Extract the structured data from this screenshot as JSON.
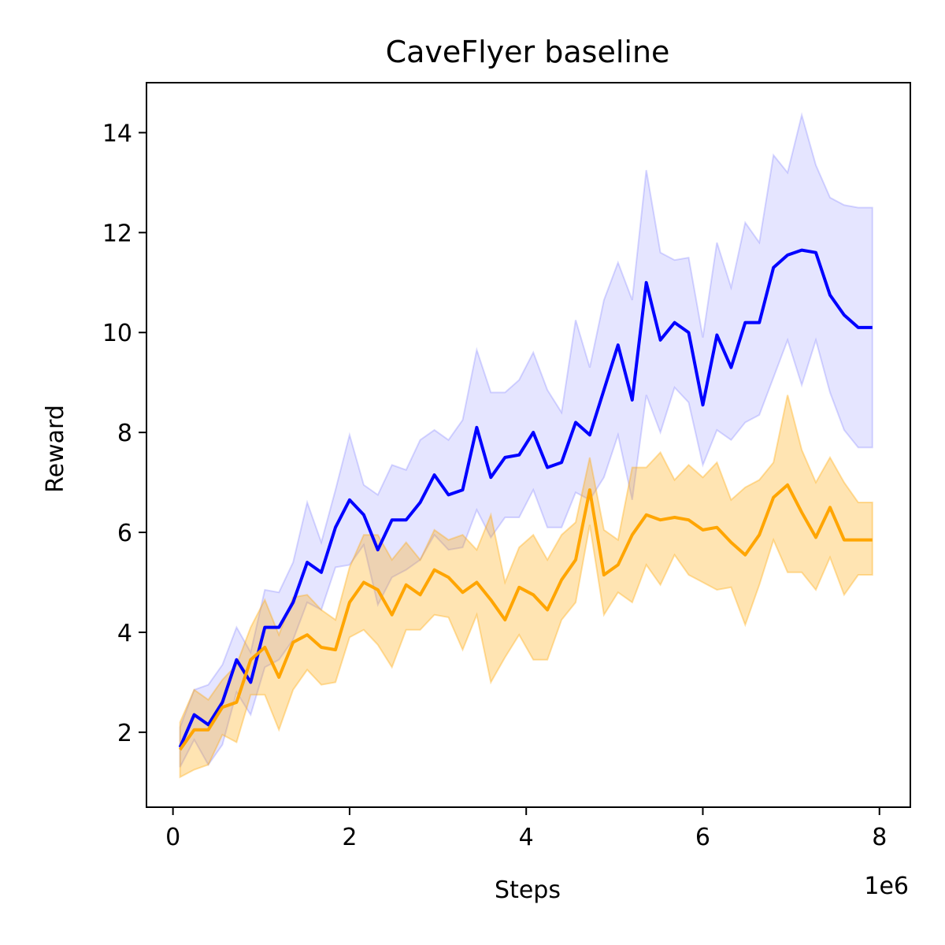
{
  "chart_data": {
    "type": "line",
    "title": "CaveFlyer baseline",
    "xlabel": "Steps",
    "ylabel": "Reward",
    "x_offset_label": "1e6",
    "xlim": [
      -0.3,
      8.35
    ],
    "ylim": [
      0.5,
      15.0
    ],
    "x_ticks": [
      0,
      2,
      4,
      6,
      8
    ],
    "x_tick_labels": [
      "0",
      "2",
      "4",
      "6",
      "8"
    ],
    "y_ticks": [
      2,
      4,
      6,
      8,
      10,
      12,
      14
    ],
    "y_tick_labels": [
      "2",
      "4",
      "6",
      "8",
      "10",
      "12",
      "14"
    ],
    "grid": false,
    "legend": "none",
    "x": [
      0.08,
      0.24,
      0.4,
      0.56,
      0.72,
      0.88,
      1.04,
      1.2,
      1.36,
      1.52,
      1.68,
      1.84,
      2.0,
      2.16,
      2.32,
      2.48,
      2.64,
      2.8,
      2.96,
      3.12,
      3.28,
      3.44,
      3.6,
      3.76,
      3.92,
      4.08,
      4.24,
      4.4,
      4.56,
      4.72,
      4.88,
      5.04,
      5.2,
      5.36,
      5.52,
      5.68,
      5.84,
      6.0,
      6.16,
      6.32,
      6.48,
      6.64,
      6.8,
      6.96,
      7.12,
      7.28,
      7.44,
      7.6,
      7.76,
      7.92
    ],
    "series": [
      {
        "color": "#0000ff",
        "band_color": "#0000ff",
        "values": [
          1.7,
          2.35,
          2.15,
          2.6,
          3.45,
          3.0,
          4.1,
          4.1,
          4.6,
          5.4,
          5.2,
          6.1,
          6.65,
          6.35,
          5.65,
          6.25,
          6.25,
          6.6,
          7.15,
          6.75,
          6.85,
          8.1,
          7.1,
          7.5,
          7.55,
          8.0,
          7.3,
          7.4,
          8.2,
          7.95,
          8.85,
          9.75,
          8.65,
          11.0,
          9.85,
          10.2,
          10.0,
          8.55,
          9.95,
          9.3,
          10.2,
          10.2,
          11.3,
          11.55,
          11.65,
          11.6,
          10.75,
          10.35,
          10.1,
          10.1
        ],
        "lower": [
          1.3,
          1.85,
          1.35,
          1.75,
          2.8,
          2.35,
          3.3,
          3.45,
          3.85,
          4.6,
          4.45,
          5.3,
          5.35,
          5.75,
          4.55,
          5.1,
          5.25,
          5.45,
          5.95,
          5.65,
          5.7,
          6.45,
          5.9,
          6.3,
          6.3,
          6.85,
          6.1,
          6.1,
          6.8,
          6.65,
          7.1,
          7.95,
          6.65,
          8.75,
          8.0,
          8.9,
          8.6,
          7.35,
          8.05,
          7.85,
          8.2,
          8.35,
          9.1,
          9.85,
          8.95,
          9.85,
          8.8,
          8.05,
          7.7,
          7.7
        ],
        "upper": [
          2.1,
          2.85,
          2.95,
          3.35,
          4.1,
          3.6,
          4.85,
          4.8,
          5.4,
          6.6,
          5.8,
          6.85,
          7.95,
          6.95,
          6.75,
          7.35,
          7.25,
          7.85,
          8.05,
          7.85,
          8.25,
          9.65,
          8.8,
          8.8,
          9.05,
          9.6,
          8.85,
          8.4,
          10.25,
          9.3,
          10.65,
          11.4,
          10.65,
          13.25,
          11.6,
          11.45,
          11.5,
          9.9,
          11.8,
          10.9,
          12.2,
          11.8,
          13.55,
          13.2,
          14.35,
          13.35,
          12.7,
          12.55,
          12.5,
          12.5
        ]
      },
      {
        "color": "#ffa500",
        "band_color": "#ffa500",
        "values": [
          1.65,
          2.05,
          2.05,
          2.5,
          2.6,
          3.45,
          3.7,
          3.1,
          3.8,
          3.95,
          3.7,
          3.65,
          4.6,
          5.0,
          4.85,
          4.35,
          4.95,
          4.75,
          5.25,
          5.1,
          4.8,
          5.0,
          4.65,
          4.25,
          4.9,
          4.75,
          4.45,
          5.05,
          5.45,
          6.85,
          5.15,
          5.35,
          5.95,
          6.35,
          6.25,
          6.3,
          6.25,
          6.05,
          6.1,
          5.8,
          5.55,
          5.95,
          6.7,
          6.95,
          6.4,
          5.9,
          6.5,
          5.85,
          5.85,
          5.85
        ],
        "lower": [
          1.1,
          1.25,
          1.35,
          1.95,
          1.8,
          2.75,
          2.75,
          2.05,
          2.85,
          3.25,
          2.95,
          3.0,
          3.9,
          4.05,
          3.75,
          3.3,
          4.05,
          4.05,
          4.35,
          4.3,
          3.65,
          4.35,
          3.0,
          3.5,
          3.95,
          3.45,
          3.45,
          4.25,
          4.6,
          6.15,
          4.35,
          4.8,
          4.6,
          5.35,
          4.95,
          5.55,
          5.15,
          5.0,
          4.85,
          4.9,
          4.15,
          4.95,
          5.85,
          5.2,
          5.2,
          4.85,
          5.5,
          4.75,
          5.15,
          5.15
        ],
        "upper": [
          2.2,
          2.85,
          2.65,
          3.05,
          3.35,
          4.1,
          4.65,
          3.95,
          4.7,
          4.75,
          4.45,
          4.25,
          5.3,
          5.95,
          5.95,
          5.45,
          5.8,
          5.45,
          6.05,
          5.85,
          5.95,
          5.65,
          6.35,
          5.0,
          5.7,
          5.95,
          5.45,
          5.95,
          6.2,
          7.5,
          6.05,
          5.85,
          7.3,
          7.3,
          7.6,
          7.05,
          7.35,
          7.1,
          7.4,
          6.65,
          6.9,
          7.05,
          7.4,
          8.75,
          7.65,
          7.0,
          7.5,
          7.0,
          6.6,
          6.6
        ]
      }
    ]
  }
}
